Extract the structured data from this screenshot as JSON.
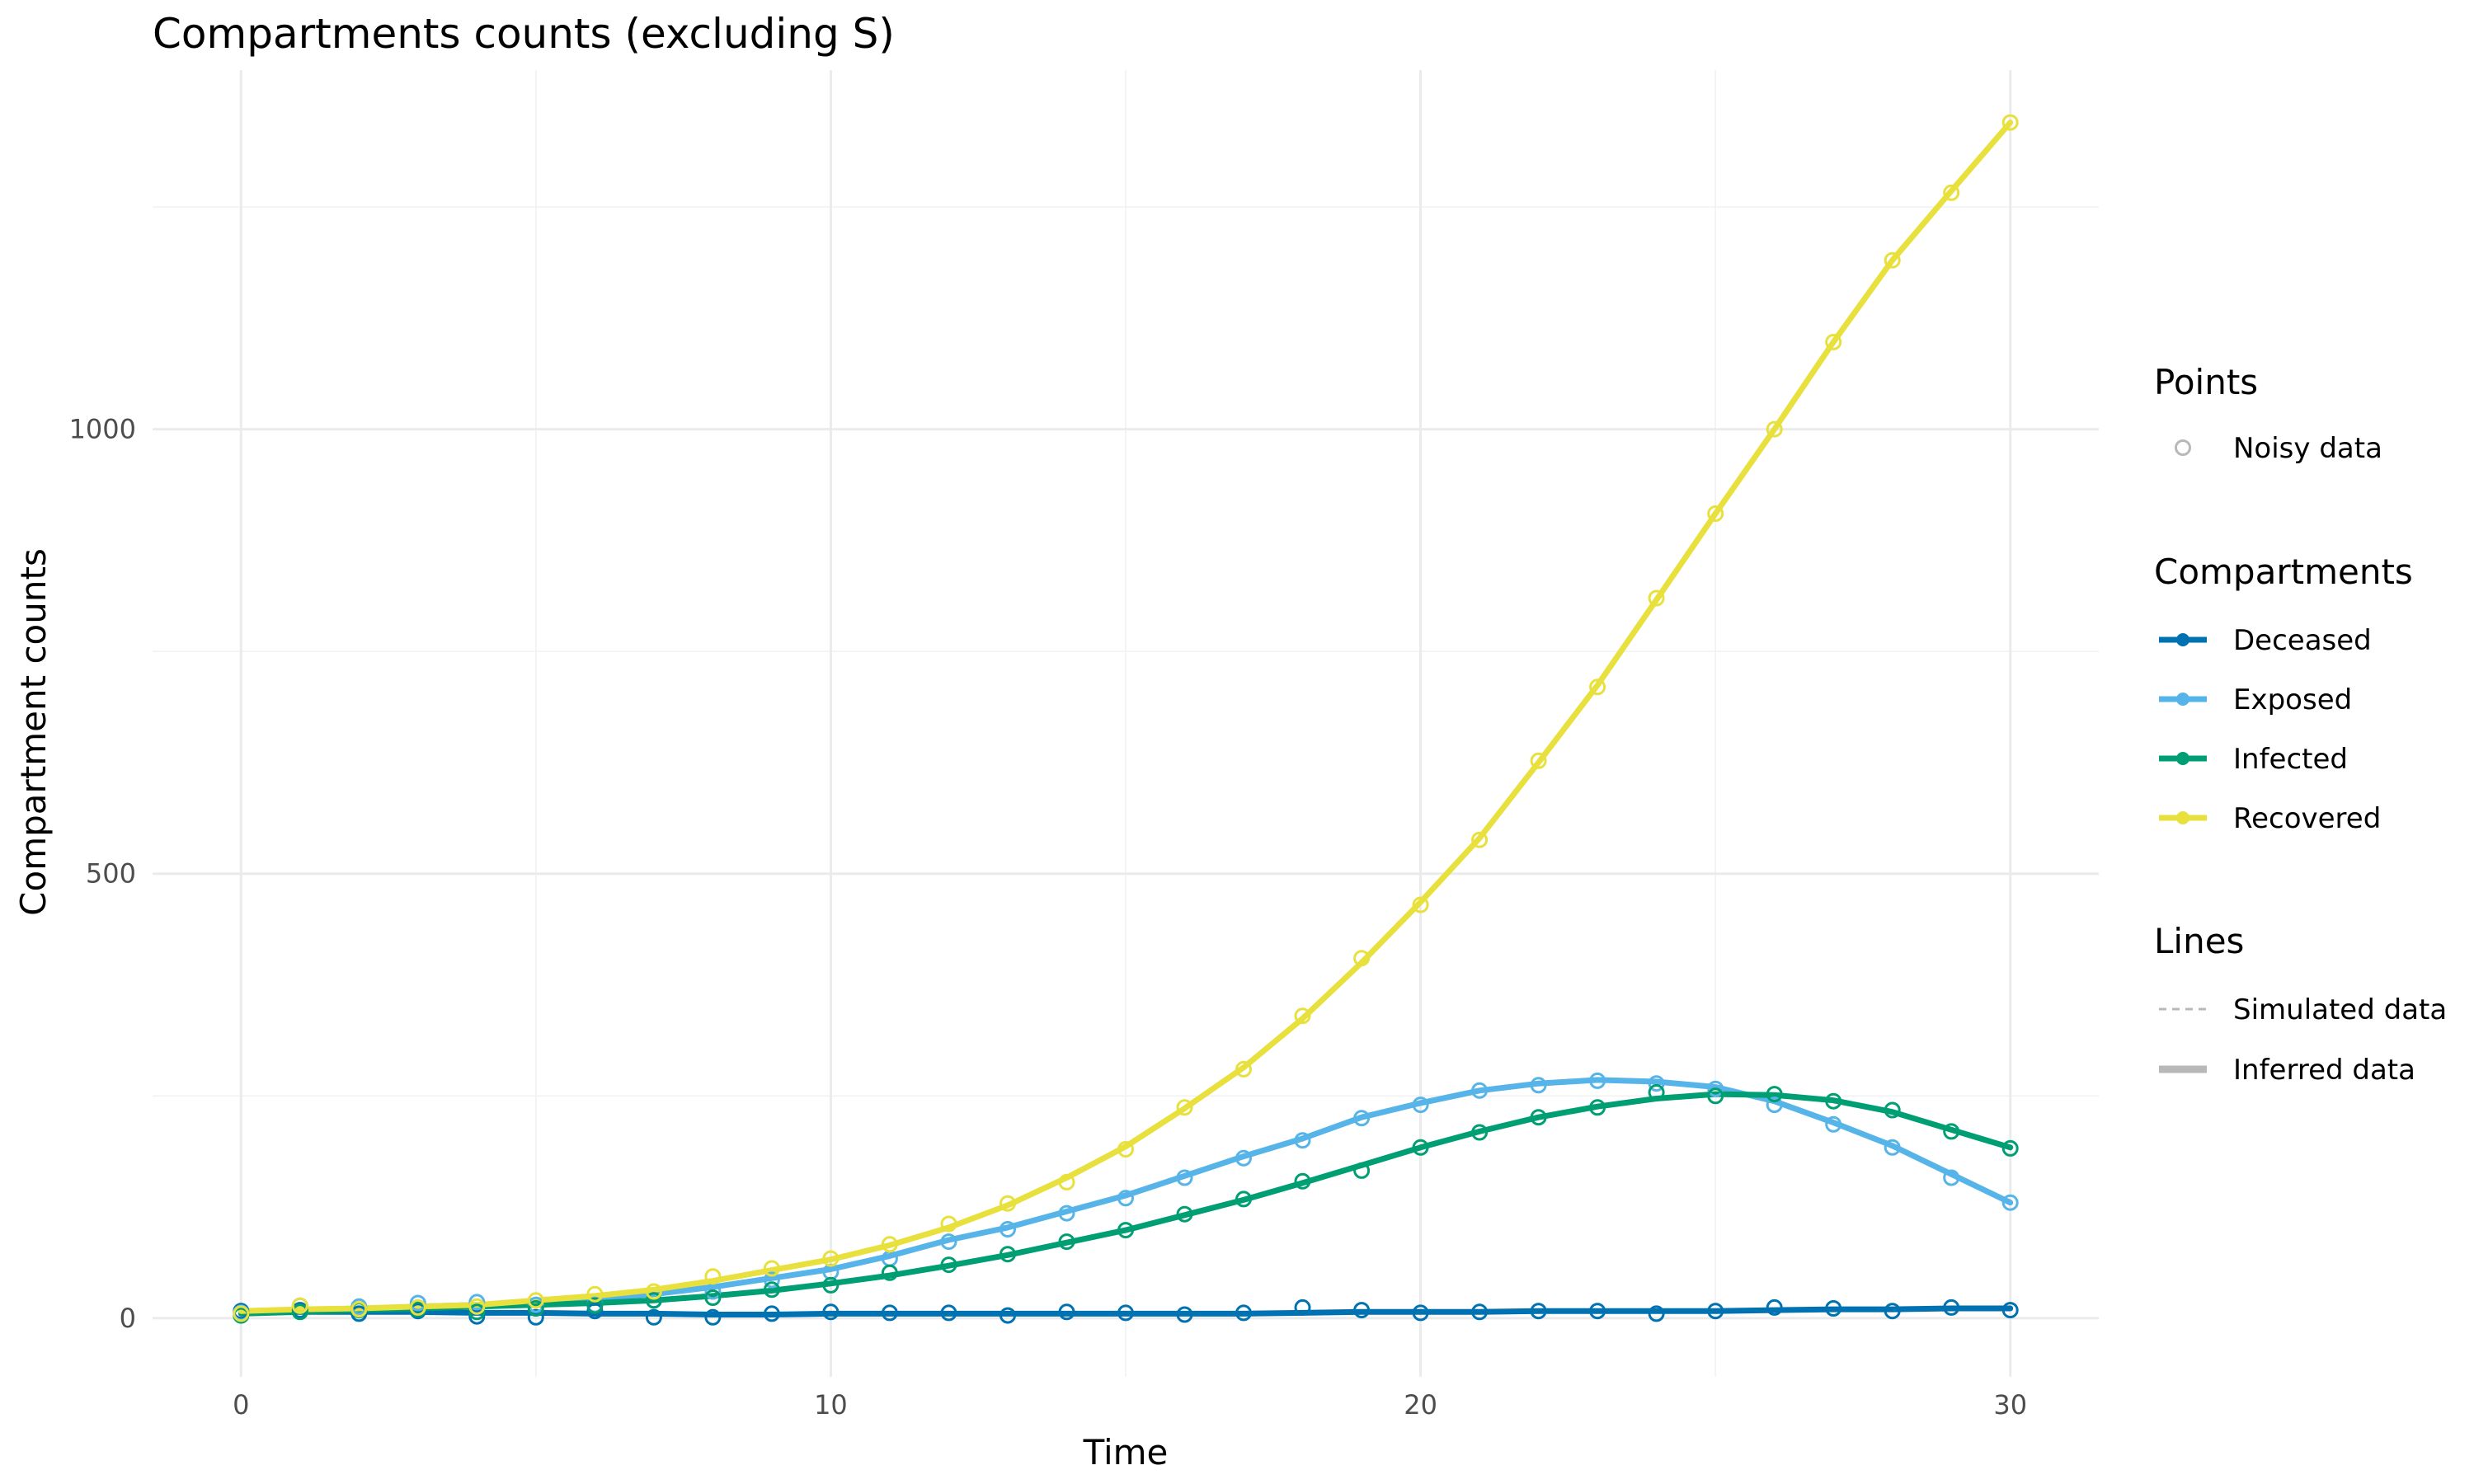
{
  "chart_data": {
    "type": "line",
    "title": "Compartments counts (excluding S)",
    "xlabel": "Time",
    "ylabel": "Compartment counts",
    "xlim": [
      -1.5,
      31.5
    ],
    "ylim": [
      -66,
      1404
    ],
    "x_ticks": [
      0,
      10,
      20,
      30
    ],
    "y_ticks": [
      0,
      500,
      1000
    ],
    "grid": true,
    "legend_position": "right",
    "legend": {
      "points_title": "Points",
      "points_label": "Noisy data",
      "compartments_title": "Compartments",
      "lines_title": "Lines",
      "simulated_label": "Simulated data",
      "inferred_label": "Inferred data",
      "neutral_color": "#b8b8b8"
    },
    "x": [
      0,
      1,
      2,
      3,
      4,
      5,
      6,
      7,
      8,
      9,
      10,
      11,
      12,
      13,
      14,
      15,
      16,
      17,
      18,
      19,
      20,
      21,
      22,
      23,
      24,
      25,
      26,
      27,
      28,
      29,
      30
    ],
    "series": [
      {
        "name": "Deceased",
        "color": "#0072B2",
        "line": [
          8,
          7,
          7,
          7,
          6,
          6,
          5,
          5,
          4,
          4,
          5,
          5,
          5,
          5,
          5,
          5,
          5,
          5,
          6,
          7,
          7,
          7,
          8,
          8,
          8,
          8,
          9,
          10,
          10,
          11,
          11
        ],
        "points": [
          8,
          9,
          5,
          8,
          2,
          1,
          8,
          1,
          1,
          5,
          7,
          6,
          6,
          3,
          7,
          6,
          4,
          6,
          12,
          9,
          6,
          7,
          8,
          8,
          5,
          8,
          12,
          11,
          8,
          12,
          9
        ]
      },
      {
        "name": "Exposed",
        "color": "#56B4E9",
        "line": [
          6,
          8,
          10,
          13,
          15,
          18,
          22,
          27,
          35,
          45,
          55,
          70,
          88,
          102,
          120,
          138,
          160,
          182,
          202,
          226,
          242,
          256,
          264,
          268,
          266,
          260,
          244,
          220,
          194,
          162,
          130
        ],
        "points": [
          6,
          14,
          13,
          17,
          18,
          15,
          15,
          20,
          30,
          43,
          52,
          67,
          86,
          100,
          118,
          135,
          158,
          180,
          200,
          225,
          240,
          256,
          262,
          267,
          264,
          258,
          240,
          218,
          192,
          158,
          130
        ]
      },
      {
        "name": "Infected",
        "color": "#009E73",
        "line": [
          5,
          7,
          9,
          11,
          13,
          15,
          17,
          20,
          25,
          31,
          39,
          48,
          59,
          71,
          85,
          99,
          116,
          133,
          152,
          172,
          192,
          210,
          226,
          238,
          247,
          252,
          251,
          245,
          232,
          212,
          192
        ],
        "points": [
          3,
          7,
          9,
          10,
          7,
          11,
          14,
          20,
          23,
          32,
          37,
          51,
          60,
          72,
          86,
          99,
          117,
          134,
          154,
          166,
          192,
          209,
          226,
          237,
          254,
          250,
          252,
          244,
          234,
          210,
          191
        ]
      },
      {
        "name": "Recovered",
        "color": "#E8E03C",
        "line": [
          8,
          10,
          11,
          13,
          15,
          20,
          25,
          32,
          42,
          54,
          66,
          82,
          102,
          127,
          158,
          193,
          236,
          282,
          337,
          400,
          468,
          540,
          625,
          712,
          808,
          905,
          1000,
          1098,
          1190,
          1268,
          1345
        ],
        "points": [
          5,
          14,
          10,
          12,
          13,
          20,
          27,
          30,
          47,
          56,
          67,
          83,
          106,
          129,
          153,
          190,
          237,
          280,
          340,
          405,
          465,
          538,
          627,
          710,
          810,
          905,
          1000,
          1098,
          1190,
          1266,
          1345
        ]
      }
    ]
  }
}
